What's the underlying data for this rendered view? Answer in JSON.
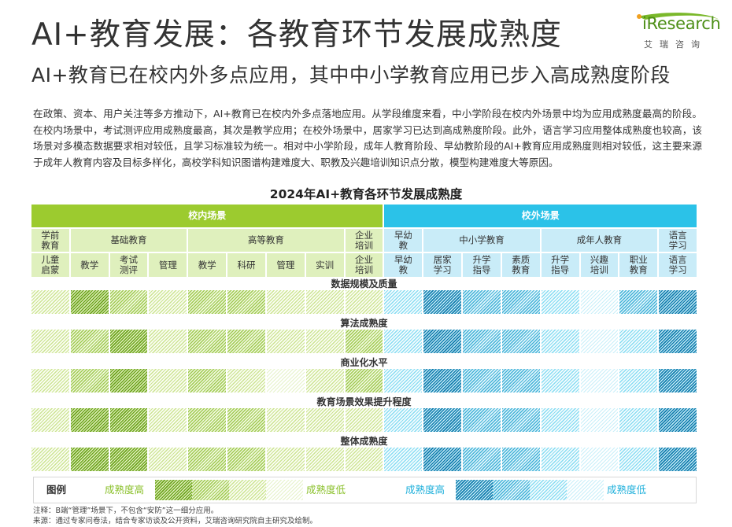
{
  "header": {
    "title": "AI+教育发展：各教育环节发展成熟度",
    "subtitle": "AI+教育已在校内外多点应用，其中中小学教育应用已步入高成熟度阶段",
    "logo_text": "iResearch",
    "logo_cn": "艾瑞咨询"
  },
  "paragraph": "在政策、资本、用户关注等多方推动下，AI+教育已在校内外多点落地应用。从学段维度来看，中小学阶段在校内外场景中均为应用成熟度最高的阶段。在校内场景中，考试测评应用成熟度最高，其次是教学应用；在校外场景中，居家学习已达到高成熟度阶段。此外，语言学习应用整体成熟度也较高，该场景对多模态数据要求相对较低，且学习标准较为统一。相对中小学阶段，成年人教育阶段、早幼教阶段的AI+教育应用成熟度则相对较低，这主要来源于成年人教育内容及目标多样化，高校学科知识图谱构建难度大、职教及兴趣培训知识点分散，模型构建难度大等原因。",
  "chart_data": {
    "type": "heatmap",
    "title": "2024年AI+教育各环节发展成熟度",
    "scale": "1 = 成熟度低 … 4 = 成熟度高",
    "bands": [
      {
        "label": "校内场景",
        "side": "inside"
      },
      {
        "label": "校外场景",
        "side": "outside"
      }
    ],
    "groups": [
      {
        "label": "学前\n教育",
        "side": "inside",
        "span": 1
      },
      {
        "label": "基础教育",
        "side": "inside",
        "span": 3
      },
      {
        "label": "高等教育",
        "side": "inside",
        "span": 4
      },
      {
        "label": "企业\n培训",
        "side": "inside",
        "span": 1
      },
      {
        "label": "早幼\n教",
        "side": "outside",
        "span": 1
      },
      {
        "label": "中小学教育",
        "side": "outside",
        "span": 3
      },
      {
        "label": "成年人教育",
        "side": "outside",
        "span": 3
      },
      {
        "label": "语言\n学习",
        "side": "outside",
        "span": 1
      }
    ],
    "columns": [
      {
        "label": "儿童\n启蒙",
        "side": "inside"
      },
      {
        "label": "教学",
        "side": "inside"
      },
      {
        "label": "考试\n测评",
        "side": "inside"
      },
      {
        "label": "管理",
        "side": "inside"
      },
      {
        "label": "教学",
        "side": "inside"
      },
      {
        "label": "科研",
        "side": "inside"
      },
      {
        "label": "管理",
        "side": "inside"
      },
      {
        "label": "实训",
        "side": "inside"
      },
      {
        "label": "企业\n培训",
        "side": "inside"
      },
      {
        "label": "早幼\n教",
        "side": "outside"
      },
      {
        "label": "居家\n学习",
        "side": "outside"
      },
      {
        "label": "升学\n指导",
        "side": "outside"
      },
      {
        "label": "素质\n教育",
        "side": "outside"
      },
      {
        "label": "升学\n指导",
        "side": "outside"
      },
      {
        "label": "兴趣\n培训",
        "side": "outside"
      },
      {
        "label": "职业\n教育",
        "side": "outside"
      },
      {
        "label": "语言\n学习",
        "side": "outside"
      }
    ],
    "rows": [
      {
        "label": "数据规模及质量",
        "values": [
          2,
          4,
          3,
          2,
          3,
          3,
          2,
          2,
          2,
          2,
          4,
          3,
          3,
          2,
          1,
          3,
          4
        ]
      },
      {
        "label": "算法成熟度",
        "values": [
          2,
          3,
          4,
          2,
          3,
          3,
          2,
          2,
          3,
          2,
          4,
          3,
          3,
          2,
          1,
          2,
          4
        ]
      },
      {
        "label": "商业化水平",
        "values": [
          2,
          3,
          4,
          2,
          3,
          2,
          1,
          2,
          3,
          2,
          4,
          3,
          3,
          2,
          1,
          2,
          4
        ]
      },
      {
        "label": "教育场景效果提升程度",
        "values": [
          2,
          4,
          4,
          2,
          3,
          3,
          2,
          2,
          2,
          2,
          4,
          3,
          3,
          2,
          1,
          2,
          4
        ]
      },
      {
        "label": "整体成熟度",
        "values": [
          2,
          4,
          4,
          2,
          3,
          3,
          2,
          2,
          2,
          2,
          4,
          3,
          3,
          2,
          1,
          2,
          4
        ]
      }
    ]
  },
  "legend": {
    "label": "图例",
    "inside_high": "成熟度高",
    "inside_low": "成熟度低",
    "outside_high": "成熟度高",
    "outside_low": "成熟度低"
  },
  "notes": {
    "note": "注释：B端“管理”场景下，不包含“安防”这一细分应用。",
    "source": "来源：通过专家问卷法，结合专家访谈及公开资料，艾瑞咨询研究院自主研究及绘制。"
  },
  "colors": {
    "inside_accent": "#9ccb2f",
    "outside_accent": "#2bc2e8",
    "title_color": "#333333",
    "logo_green": "#4d8f17"
  }
}
